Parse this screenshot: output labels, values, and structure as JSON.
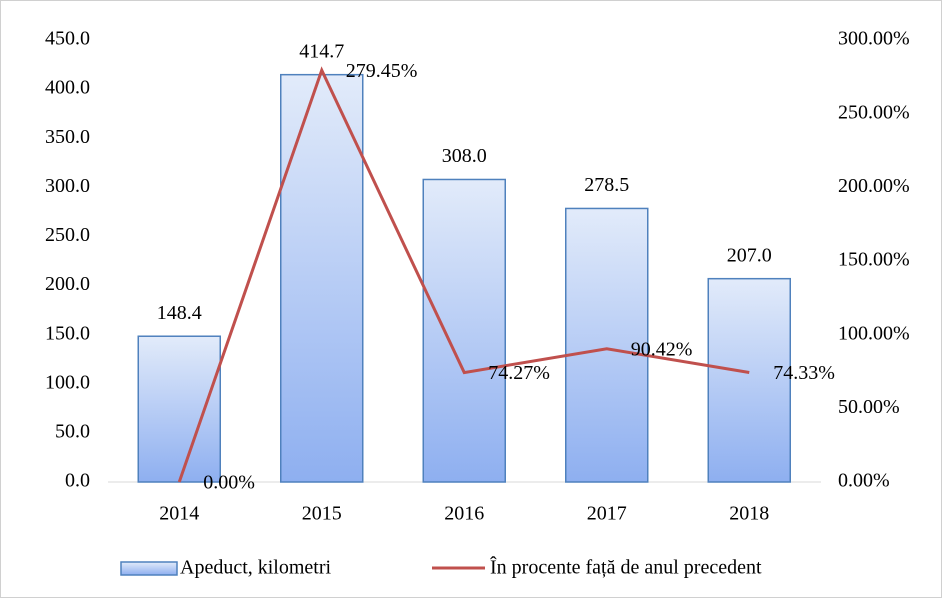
{
  "chart_data": {
    "type": "bar-line",
    "categories": [
      "2014",
      "2015",
      "2016",
      "2017",
      "2018"
    ],
    "series": [
      {
        "name": "Apeduct, kilometri",
        "type": "bar",
        "color": "#4f81bd",
        "values": [
          148.4,
          414.7,
          308.0,
          278.5,
          207.0
        ],
        "value_labels": [
          "148.4",
          "414.7",
          "308.0",
          "278.5",
          "207.0"
        ]
      },
      {
        "name": "În procente față de anul precedent",
        "type": "line",
        "axis": "y2",
        "color": "#c0504d",
        "values": [
          0,
          279.45,
          74.27,
          90.42,
          74.33
        ],
        "value_labels": [
          "0.00%",
          "279.45%",
          "74.27%",
          "90.42%",
          "74.33%"
        ]
      }
    ],
    "ylim": [
      0,
      450
    ],
    "yticks": [
      {
        "value": 0,
        "label": "0.0"
      },
      {
        "value": 50,
        "label": "50.0"
      },
      {
        "value": 100,
        "label": "100.0"
      },
      {
        "value": 150,
        "label": "150.0"
      },
      {
        "value": 200,
        "label": "200.0"
      },
      {
        "value": 250,
        "label": "250.0"
      },
      {
        "value": 300,
        "label": "300.0"
      },
      {
        "value": 350,
        "label": "350.0"
      },
      {
        "value": 400,
        "label": "400.0"
      },
      {
        "value": 450,
        "label": "450.0"
      }
    ],
    "y2lim": [
      0,
      300
    ],
    "y2ticks": [
      {
        "value": 0,
        "label": "0.00%"
      },
      {
        "value": 50,
        "label": "50.00%"
      },
      {
        "value": 100,
        "label": "100.00%"
      },
      {
        "value": 150,
        "label": "150.00%"
      },
      {
        "value": 200,
        "label": "200.00%"
      },
      {
        "value": 250,
        "label": "250.00%"
      },
      {
        "value": 300,
        "label": "300.00%"
      }
    ],
    "grid": false,
    "legend": "bottom"
  }
}
